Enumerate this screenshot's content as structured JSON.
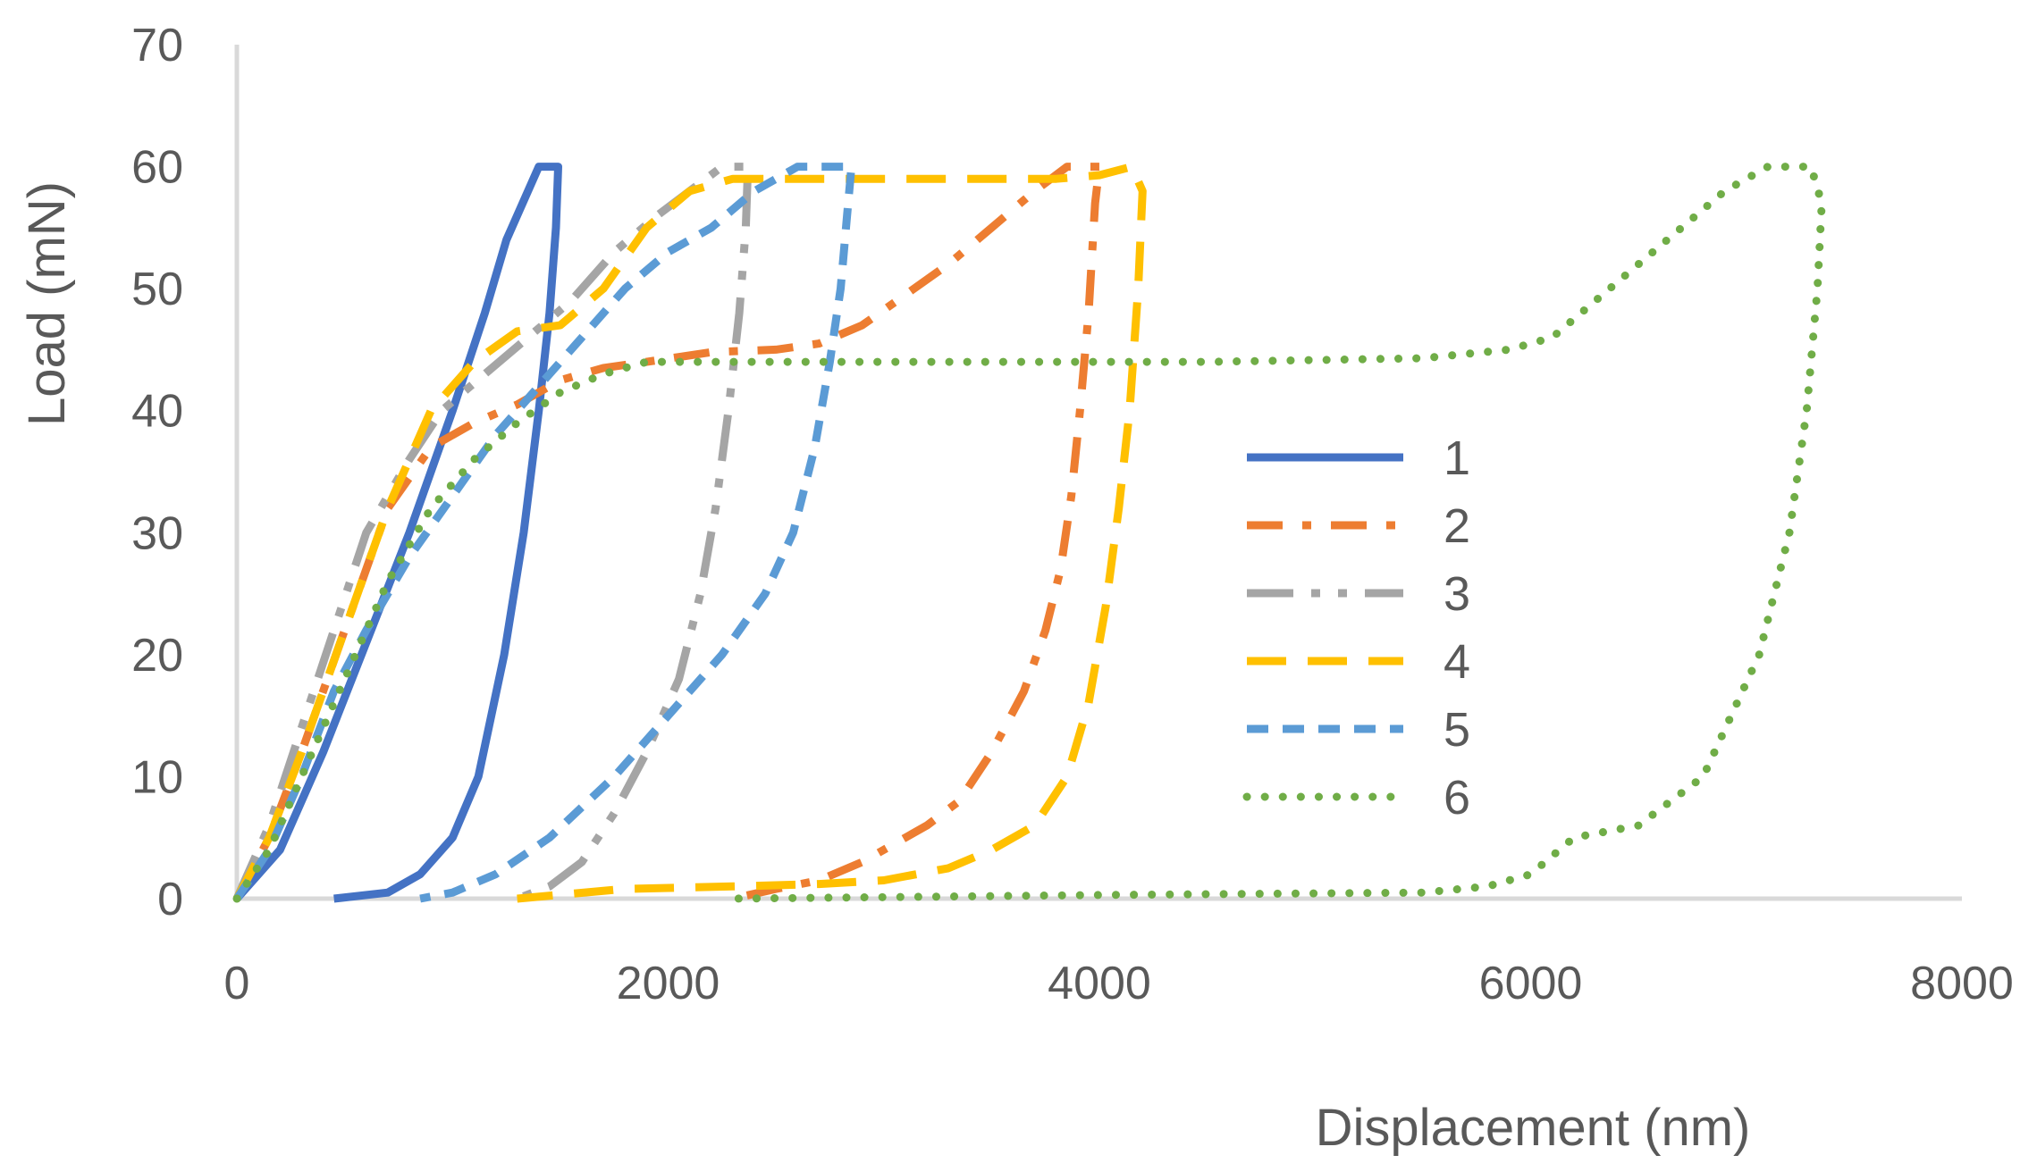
{
  "chart_data": {
    "type": "line",
    "title": "",
    "xlabel": "Displacement (nm)",
    "ylabel": "Load (mN)",
    "xlim": [
      0,
      8000
    ],
    "ylim": [
      0,
      70
    ],
    "xticks": [
      0,
      2000,
      4000,
      6000,
      8000
    ],
    "yticks": [
      0,
      10,
      20,
      30,
      40,
      50,
      60,
      70
    ],
    "grid": false,
    "legend_position": "right",
    "series": [
      {
        "name": "1",
        "color": "#4472C4",
        "dash": "solid",
        "points": [
          [
            0,
            0
          ],
          [
            200,
            4
          ],
          [
            400,
            12
          ],
          [
            600,
            21
          ],
          [
            800,
            30
          ],
          [
            1000,
            40
          ],
          [
            1150,
            48
          ],
          [
            1250,
            54
          ],
          [
            1350,
            58
          ],
          [
            1400,
            60
          ],
          [
            1490,
            60
          ],
          [
            1480,
            55
          ],
          [
            1450,
            48
          ],
          [
            1400,
            40
          ],
          [
            1330,
            30
          ],
          [
            1240,
            20
          ],
          [
            1120,
            10
          ],
          [
            1000,
            5
          ],
          [
            850,
            2
          ],
          [
            700,
            0.5
          ],
          [
            450,
            0
          ]
        ]
      },
      {
        "name": "2",
        "color": "#ED7D31",
        "dash": "dashdot",
        "points": [
          [
            0,
            0
          ],
          [
            150,
            5
          ],
          [
            300,
            12
          ],
          [
            500,
            22
          ],
          [
            700,
            32
          ],
          [
            900,
            37
          ],
          [
            1100,
            39
          ],
          [
            1300,
            40.5
          ],
          [
            1500,
            42.5
          ],
          [
            1700,
            43.5
          ],
          [
            1900,
            44
          ],
          [
            2200,
            44.8
          ],
          [
            2500,
            45
          ],
          [
            2700,
            45.5
          ],
          [
            2900,
            47
          ],
          [
            3100,
            49.5
          ],
          [
            3300,
            52
          ],
          [
            3500,
            55
          ],
          [
            3700,
            58
          ],
          [
            3850,
            60
          ],
          [
            4000,
            60
          ],
          [
            3980,
            57
          ],
          [
            3950,
            48
          ],
          [
            3910,
            40
          ],
          [
            3870,
            33
          ],
          [
            3820,
            27
          ],
          [
            3750,
            22
          ],
          [
            3650,
            17
          ],
          [
            3500,
            12
          ],
          [
            3350,
            8
          ],
          [
            3200,
            6
          ],
          [
            2900,
            3
          ],
          [
            2700,
            1.5
          ],
          [
            2500,
            0.8
          ],
          [
            2300,
            0
          ]
        ]
      },
      {
        "name": "3",
        "color": "#A5A5A5",
        "dash": "longdashdotdot",
        "points": [
          [
            0,
            0
          ],
          [
            150,
            6
          ],
          [
            300,
            14
          ],
          [
            450,
            22
          ],
          [
            600,
            30
          ],
          [
            800,
            36
          ],
          [
            950,
            40
          ],
          [
            1150,
            43
          ],
          [
            1350,
            46
          ],
          [
            1550,
            49
          ],
          [
            1750,
            53
          ],
          [
            1950,
            56
          ],
          [
            2100,
            58
          ],
          [
            2250,
            60
          ],
          [
            2370,
            60
          ],
          [
            2360,
            55
          ],
          [
            2330,
            48
          ],
          [
            2280,
            40
          ],
          [
            2220,
            32
          ],
          [
            2150,
            25
          ],
          [
            2050,
            18
          ],
          [
            1900,
            12
          ],
          [
            1750,
            7
          ],
          [
            1600,
            3
          ],
          [
            1450,
            1
          ],
          [
            1300,
            0
          ]
        ]
      },
      {
        "name": "4",
        "color": "#FFC000",
        "dash": "dashed",
        "points": [
          [
            0,
            0
          ],
          [
            150,
            5
          ],
          [
            300,
            12
          ],
          [
            500,
            22
          ],
          [
            700,
            32
          ],
          [
            900,
            40
          ],
          [
            1100,
            44
          ],
          [
            1300,
            46.5
          ],
          [
            1500,
            47
          ],
          [
            1700,
            50
          ],
          [
            1900,
            55
          ],
          [
            2100,
            58
          ],
          [
            2300,
            59
          ],
          [
            2600,
            59
          ],
          [
            3000,
            59
          ],
          [
            3400,
            59
          ],
          [
            3800,
            59
          ],
          [
            4000,
            59.3
          ],
          [
            4150,
            60
          ],
          [
            4200,
            58
          ],
          [
            4180,
            50
          ],
          [
            4140,
            40
          ],
          [
            4090,
            32
          ],
          [
            4030,
            24
          ],
          [
            3950,
            16
          ],
          [
            3850,
            10
          ],
          [
            3700,
            6
          ],
          [
            3500,
            4
          ],
          [
            3300,
            2.5
          ],
          [
            3000,
            1.5
          ],
          [
            2700,
            1.2
          ],
          [
            2300,
            1
          ],
          [
            1800,
            0.8
          ],
          [
            1300,
            0
          ]
        ]
      },
      {
        "name": "5",
        "color": "#5B9BD5",
        "dash": "shortdash",
        "points": [
          [
            0,
            0
          ],
          [
            150,
            4
          ],
          [
            300,
            10
          ],
          [
            450,
            17
          ],
          [
            600,
            22
          ],
          [
            800,
            28
          ],
          [
            1000,
            33
          ],
          [
            1200,
            38
          ],
          [
            1400,
            42
          ],
          [
            1600,
            46
          ],
          [
            1800,
            50
          ],
          [
            2000,
            53
          ],
          [
            2200,
            55
          ],
          [
            2400,
            58
          ],
          [
            2600,
            60
          ],
          [
            2850,
            60
          ],
          [
            2830,
            56
          ],
          [
            2800,
            50
          ],
          [
            2750,
            44
          ],
          [
            2680,
            37
          ],
          [
            2580,
            30
          ],
          [
            2450,
            25
          ],
          [
            2250,
            20
          ],
          [
            2000,
            15
          ],
          [
            1750,
            10
          ],
          [
            1450,
            5
          ],
          [
            1200,
            2
          ],
          [
            1000,
            0.5
          ],
          [
            850,
            0
          ]
        ]
      },
      {
        "name": "6",
        "color": "#70AD47",
        "dash": "dotted",
        "points": [
          [
            0,
            0
          ],
          [
            150,
            4
          ],
          [
            300,
            10
          ],
          [
            500,
            18
          ],
          [
            700,
            26
          ],
          [
            900,
            32
          ],
          [
            1100,
            36
          ],
          [
            1300,
            39
          ],
          [
            1500,
            41.5
          ],
          [
            1700,
            43
          ],
          [
            1900,
            44
          ],
          [
            2500,
            44
          ],
          [
            3500,
            44
          ],
          [
            4500,
            44
          ],
          [
            5500,
            44.3
          ],
          [
            5900,
            45
          ],
          [
            6100,
            46
          ],
          [
            6300,
            49
          ],
          [
            6500,
            52
          ],
          [
            6700,
            55
          ],
          [
            6900,
            58
          ],
          [
            7100,
            60
          ],
          [
            7300,
            60
          ],
          [
            7350,
            57
          ],
          [
            7330,
            50
          ],
          [
            7280,
            40
          ],
          [
            7200,
            30
          ],
          [
            7060,
            20
          ],
          [
            6800,
            10
          ],
          [
            6500,
            6
          ],
          [
            6200,
            5
          ],
          [
            6000,
            2
          ],
          [
            5800,
            1
          ],
          [
            5500,
            0.5
          ],
          [
            4000,
            0.3
          ],
          [
            2300,
            0
          ]
        ]
      }
    ]
  }
}
